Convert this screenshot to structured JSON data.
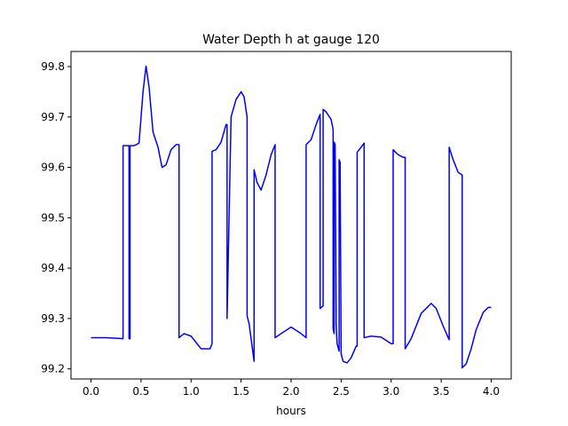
{
  "chart_data": {
    "type": "line",
    "title": "Water Depth h at gauge 120",
    "xlabel": "hours",
    "ylabel": "",
    "xlim": [
      -0.2,
      4.2
    ],
    "ylim": [
      99.18,
      99.83
    ],
    "xticks": [
      0.0,
      0.5,
      1.0,
      1.5,
      2.0,
      2.5,
      3.0,
      3.5,
      4.0
    ],
    "xtick_labels": [
      "0.0",
      "0.5",
      "1.0",
      "1.5",
      "2.0",
      "2.5",
      "3.0",
      "3.5",
      "4.0"
    ],
    "yticks": [
      99.2,
      99.3,
      99.4,
      99.5,
      99.6,
      99.7,
      99.8
    ],
    "ytick_labels": [
      "99.2",
      "99.3",
      "99.4",
      "99.5",
      "99.6",
      "99.7",
      "99.8"
    ],
    "grid": false,
    "legend": "none",
    "series": [
      {
        "color": "#0000ff",
        "x": [
          0.0,
          0.15,
          0.32,
          0.32,
          0.38,
          0.38,
          0.39,
          0.39,
          0.43,
          0.48,
          0.52,
          0.55,
          0.58,
          0.62,
          0.67,
          0.71,
          0.75,
          0.8,
          0.85,
          0.88,
          0.88,
          0.93,
          1.0,
          1.1,
          1.19,
          1.21,
          1.21,
          1.25,
          1.3,
          1.35,
          1.36,
          1.36,
          1.4,
          1.45,
          1.5,
          1.53,
          1.56,
          1.56,
          1.58,
          1.62,
          1.63,
          1.63,
          1.66,
          1.7,
          1.75,
          1.8,
          1.84,
          1.84,
          1.9,
          2.0,
          2.1,
          2.15,
          2.15,
          2.2,
          2.25,
          2.29,
          2.29,
          2.32,
          2.32,
          2.35,
          2.4,
          2.42,
          2.42,
          2.43,
          2.43,
          2.44,
          2.45,
          2.45,
          2.46,
          2.48,
          2.48,
          2.49,
          2.49,
          2.5,
          2.52,
          2.56,
          2.6,
          2.65,
          2.66,
          2.66,
          2.7,
          2.73,
          2.73,
          2.8,
          2.9,
          3.0,
          3.02,
          3.02,
          3.07,
          3.12,
          3.14,
          3.14,
          3.2,
          3.3,
          3.4,
          3.45,
          3.52,
          3.57,
          3.58,
          3.58,
          3.62,
          3.67,
          3.71,
          3.71,
          3.75,
          3.8,
          3.85,
          3.92,
          3.97,
          4.0
        ],
        "y": [
          99.262,
          99.262,
          99.26,
          99.643,
          99.643,
          99.26,
          99.26,
          99.643,
          99.643,
          99.648,
          99.75,
          99.801,
          99.76,
          99.67,
          99.64,
          99.6,
          99.605,
          99.635,
          99.645,
          99.645,
          99.262,
          99.27,
          99.265,
          99.24,
          99.24,
          99.25,
          99.632,
          99.635,
          99.65,
          99.685,
          99.685,
          99.3,
          99.7,
          99.735,
          99.75,
          99.74,
          99.7,
          99.305,
          99.29,
          99.23,
          99.215,
          99.595,
          99.57,
          99.555,
          99.585,
          99.625,
          99.645,
          99.262,
          99.27,
          99.283,
          99.27,
          99.262,
          99.645,
          99.655,
          99.685,
          99.705,
          99.32,
          99.325,
          99.715,
          99.71,
          99.695,
          99.675,
          99.28,
          99.27,
          99.65,
          99.645,
          99.31,
          99.29,
          99.25,
          99.235,
          99.615,
          99.61,
          99.605,
          99.23,
          99.215,
          99.212,
          99.222,
          99.245,
          99.245,
          99.63,
          99.64,
          99.648,
          99.262,
          99.265,
          99.263,
          99.25,
          99.25,
          99.635,
          99.625,
          99.62,
          99.62,
          99.24,
          99.26,
          99.31,
          99.33,
          99.32,
          99.285,
          99.262,
          99.258,
          99.64,
          99.615,
          99.59,
          99.585,
          99.202,
          99.21,
          99.24,
          99.278,
          99.312,
          99.322,
          99.322
        ]
      }
    ]
  }
}
